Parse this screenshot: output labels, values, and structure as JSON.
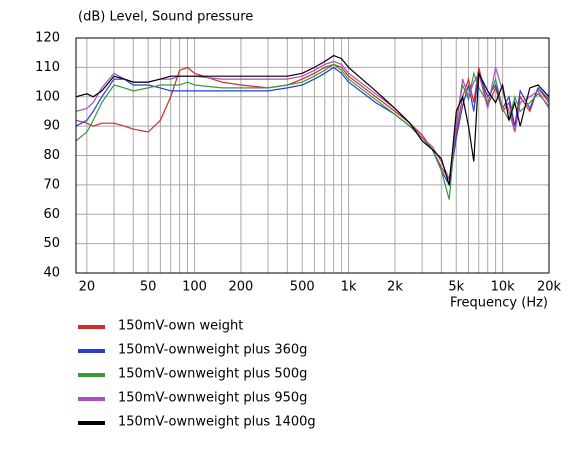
{
  "chart_data": {
    "type": "line",
    "ylabel": "(dB)  Level, Sound pressure",
    "xlabel": "Frequency  (Hz)",
    "log_x": true,
    "grid": true,
    "legend": "bottom-left",
    "xlim": [
      17,
      20000
    ],
    "ylim": [
      40,
      120
    ],
    "yticks": [
      40,
      50,
      60,
      70,
      80,
      90,
      100,
      110,
      120
    ],
    "xticks": [
      20,
      50,
      100,
      200,
      500,
      {
        "value": 1000,
        "label": "1k"
      },
      {
        "value": 2000,
        "label": "2k"
      },
      {
        "value": 5000,
        "label": "5k"
      },
      {
        "value": 10000,
        "label": "10k"
      },
      {
        "value": 20000,
        "label": "20k"
      }
    ],
    "minor_xgrid": [
      30,
      40,
      60,
      70,
      80,
      90,
      300,
      400,
      600,
      700,
      800,
      900,
      3000,
      4000,
      6000,
      7000,
      8000,
      9000
    ],
    "x": [
      17,
      20,
      22,
      25,
      30,
      35,
      40,
      50,
      60,
      70,
      80,
      90,
      100,
      150,
      200,
      300,
      400,
      500,
      600,
      700,
      800,
      900,
      1000,
      1500,
      2000,
      2500,
      3000,
      3500,
      4000,
      4500,
      5000,
      5500,
      6000,
      6500,
      7000,
      8000,
      9000,
      10000,
      11000,
      12000,
      13000,
      15000,
      17000,
      20000
    ],
    "series": [
      {
        "name": "150mV-own weight",
        "color": "#d42a2a",
        "values": [
          92,
          91,
          90,
          91,
          91,
          90,
          89,
          88,
          92,
          100,
          109,
          110,
          108,
          105,
          104,
          103,
          104,
          106,
          108,
          110,
          111,
          110,
          107,
          100,
          95,
          91,
          87,
          82,
          76,
          72,
          88,
          100,
          106,
          98,
          110,
          97,
          103,
          95,
          98,
          88,
          100,
          95,
          103,
          98
        ]
      },
      {
        "name": "150mV-ownweight plus 360g",
        "color": "#2a3cd4",
        "values": [
          90,
          92,
          95,
          100,
          106,
          106,
          104,
          104,
          103,
          102,
          102,
          102,
          102,
          102,
          102,
          102,
          103,
          104,
          106,
          108,
          110,
          108,
          105,
          98,
          94,
          90,
          86,
          82,
          75,
          70,
          86,
          97,
          104,
          95,
          108,
          100,
          104,
          96,
          100,
          90,
          102,
          96,
          103,
          99
        ]
      },
      {
        "name": "150mV-ownweight plus 500g",
        "color": "#3a9a3a",
        "values": [
          85,
          88,
          92,
          98,
          104,
          103,
          102,
          103,
          104,
          104,
          104,
          105,
          104,
          103,
          103,
          103,
          104,
          105,
          107,
          109,
          111,
          109,
          106,
          99,
          94,
          90,
          86,
          82,
          75,
          65,
          92,
          104,
          99,
          108,
          103,
          98,
          106,
          96,
          92,
          100,
          95,
          98,
          101,
          97
        ]
      },
      {
        "name": "150mV-ownweight plus 950g",
        "color": "#a94fc0",
        "values": [
          95,
          96,
          98,
          103,
          108,
          106,
          105,
          105,
          106,
          106,
          107,
          107,
          107,
          106,
          106,
          106,
          106,
          107,
          109,
          111,
          112,
          111,
          108,
          101,
          96,
          91,
          86,
          83,
          78,
          72,
          90,
          106,
          100,
          105,
          108,
          96,
          110,
          102,
          95,
          88,
          98,
          100,
          102,
          96
        ]
      },
      {
        "name": "150mV-ownweight plus 1400g",
        "color": "#000000",
        "values": [
          100,
          101,
          100,
          102,
          107,
          106,
          105,
          105,
          106,
          107,
          107,
          107,
          107,
          107,
          107,
          107,
          107,
          108,
          110,
          112,
          114,
          113,
          110,
          102,
          96,
          91,
          85,
          82,
          79,
          70,
          95,
          100,
          90,
          78,
          108,
          102,
          98,
          104,
          92,
          98,
          90,
          103,
          104,
          100
        ]
      }
    ]
  }
}
